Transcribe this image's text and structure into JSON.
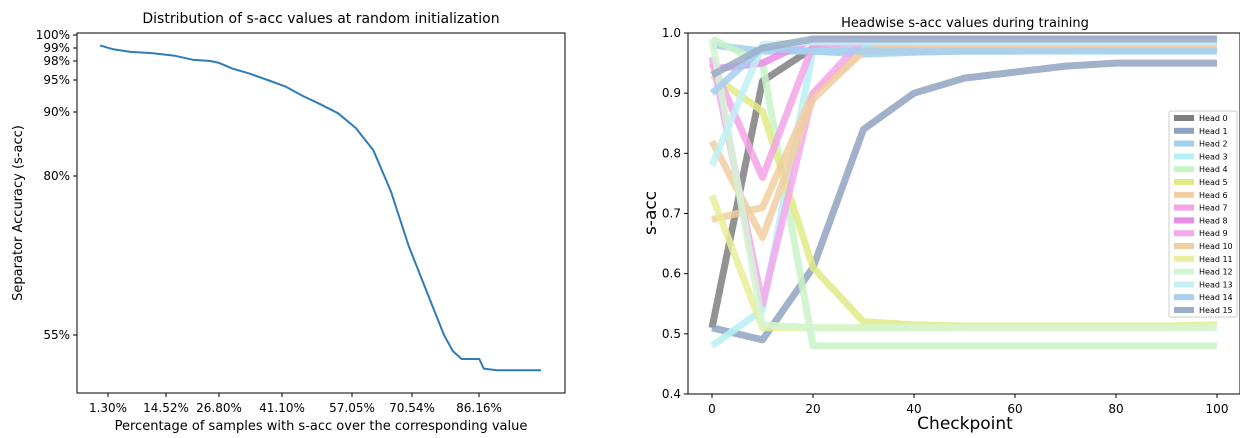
{
  "chart_data": [
    {
      "type": "line",
      "title": "Distribution of s-acc values at random initialization",
      "xlabel": "Percentage of samples with s-acc over the corresponding value",
      "ylabel": "Separator Accuracy (s-acc)",
      "x_ticks": [
        "1.30%",
        "14.52%",
        "26.80%",
        "41.10%",
        "57.05%",
        "70.54%",
        "86.16%"
      ],
      "y_ticks": [
        "55%",
        "80%",
        "90%",
        "95%",
        "98%",
        "99%",
        "100%"
      ],
      "y_scale": "nonlinear (log-like)",
      "grid": false,
      "legend": "none",
      "series": [
        {
          "color": "#2e7db9",
          "points": [
            [
              0.0,
              99.2
            ],
            [
              0.01,
              99.1
            ],
            [
              0.03,
              98.9
            ],
            [
              0.07,
              98.7
            ],
            [
              0.12,
              98.6
            ],
            [
              0.17,
              98.4
            ],
            [
              0.21,
              98.1
            ],
            [
              0.25,
              98.0
            ],
            [
              0.27,
              97.7
            ],
            [
              0.3,
              96.8
            ],
            [
              0.34,
              96.0
            ],
            [
              0.38,
              95.0
            ],
            [
              0.42,
              94.0
            ],
            [
              0.46,
              92.5
            ],
            [
              0.5,
              91.2
            ],
            [
              0.54,
              89.8
            ],
            [
              0.58,
              87.5
            ],
            [
              0.62,
              84.0
            ],
            [
              0.66,
              77.5
            ],
            [
              0.7,
              69.0
            ],
            [
              0.74,
              62.0
            ],
            [
              0.78,
              55.0
            ],
            [
              0.8,
              53.0
            ],
            [
              0.82,
              52.0
            ],
            [
              0.86,
              52.0
            ],
            [
              0.87,
              50.8
            ],
            [
              0.9,
              50.6
            ],
            [
              1.0,
              50.6
            ]
          ]
        }
      ]
    },
    {
      "type": "line",
      "title": "Headwise s-acc values during training",
      "xlabel": "Checkpoint",
      "ylabel": "s-acc",
      "xlim": [
        0,
        100
      ],
      "ylim": [
        0.4,
        1.0
      ],
      "x_ticks": [
        "0",
        "20",
        "40",
        "60",
        "80",
        "100"
      ],
      "y_ticks": [
        "0.4",
        "0.5",
        "0.6",
        "0.7",
        "0.8",
        "0.9",
        "1.0"
      ],
      "grid": false,
      "legend": "right",
      "x": [
        0,
        10,
        20,
        30,
        40,
        50,
        60,
        70,
        80,
        90,
        100
      ],
      "series": [
        {
          "name": "Head 0",
          "color": "#7f7f7f",
          "values": [
            0.51,
            0.92,
            0.975,
            0.975,
            0.975,
            0.975,
            0.975,
            0.975,
            0.975,
            0.975,
            0.975
          ]
        },
        {
          "name": "Head 1",
          "color": "#8fa3bf",
          "values": [
            0.51,
            0.49,
            0.61,
            0.84,
            0.9,
            0.925,
            0.935,
            0.945,
            0.95,
            0.95,
            0.95
          ]
        },
        {
          "name": "Head 2",
          "color": "#9fd0ee",
          "values": [
            0.98,
            0.97,
            0.97,
            0.965,
            0.968,
            0.97,
            0.97,
            0.972,
            0.972,
            0.972,
            0.972
          ]
        },
        {
          "name": "Head 3",
          "color": "#b7f0f5",
          "values": [
            0.48,
            0.54,
            0.97,
            0.98,
            0.98,
            0.98,
            0.98,
            0.98,
            0.98,
            0.98,
            0.98
          ]
        },
        {
          "name": "Head 4",
          "color": "#c8f3c8",
          "values": [
            0.99,
            0.95,
            0.48,
            0.48,
            0.48,
            0.48,
            0.48,
            0.48,
            0.48,
            0.48,
            0.48
          ]
        },
        {
          "name": "Head 5",
          "color": "#e2ea86",
          "values": [
            0.93,
            0.87,
            0.61,
            0.52,
            0.515,
            0.513,
            0.513,
            0.513,
            0.513,
            0.513,
            0.515
          ]
        },
        {
          "name": "Head 6",
          "color": "#f2cfa0",
          "values": [
            0.69,
            0.71,
            0.9,
            0.97,
            0.98,
            0.98,
            0.98,
            0.98,
            0.98,
            0.98,
            0.98
          ]
        },
        {
          "name": "Head 7",
          "color": "#f5a3e6",
          "values": [
            0.95,
            0.76,
            0.98,
            0.985,
            0.985,
            0.985,
            0.985,
            0.985,
            0.985,
            0.985,
            0.985
          ]
        },
        {
          "name": "Head 8",
          "color": "#ec8ae8",
          "values": [
            0.94,
            0.95,
            0.99,
            0.99,
            0.99,
            0.99,
            0.99,
            0.99,
            0.99,
            0.99,
            0.99
          ]
        },
        {
          "name": "Head 9",
          "color": "#f5a8ec",
          "values": [
            0.96,
            0.55,
            0.9,
            0.99,
            0.99,
            0.99,
            0.99,
            0.99,
            0.99,
            0.99,
            0.99
          ]
        },
        {
          "name": "Head 10",
          "color": "#f0cfa5",
          "values": [
            0.82,
            0.66,
            0.89,
            0.97,
            0.975,
            0.975,
            0.975,
            0.975,
            0.975,
            0.975,
            0.975
          ]
        },
        {
          "name": "Head 11",
          "color": "#e9ee9a",
          "values": [
            0.73,
            0.51,
            0.51,
            0.51,
            0.51,
            0.51,
            0.51,
            0.51,
            0.51,
            0.51,
            0.515
          ]
        },
        {
          "name": "Head 12",
          "color": "#d3f5d3",
          "values": [
            0.99,
            0.515,
            0.51,
            0.51,
            0.51,
            0.51,
            0.51,
            0.51,
            0.51,
            0.51,
            0.51
          ]
        },
        {
          "name": "Head 13",
          "color": "#c2f0f5",
          "values": [
            0.78,
            0.98,
            0.985,
            0.985,
            0.985,
            0.985,
            0.985,
            0.985,
            0.985,
            0.985,
            0.985
          ]
        },
        {
          "name": "Head 14",
          "color": "#a6d0f0",
          "values": [
            0.9,
            0.975,
            0.97,
            0.97,
            0.97,
            0.97,
            0.97,
            0.97,
            0.97,
            0.97,
            0.97
          ]
        },
        {
          "name": "Head 15",
          "color": "#9aaec8",
          "values": [
            0.93,
            0.975,
            0.99,
            0.99,
            0.99,
            0.99,
            0.99,
            0.99,
            0.99,
            0.99,
            0.99
          ]
        }
      ]
    }
  ]
}
